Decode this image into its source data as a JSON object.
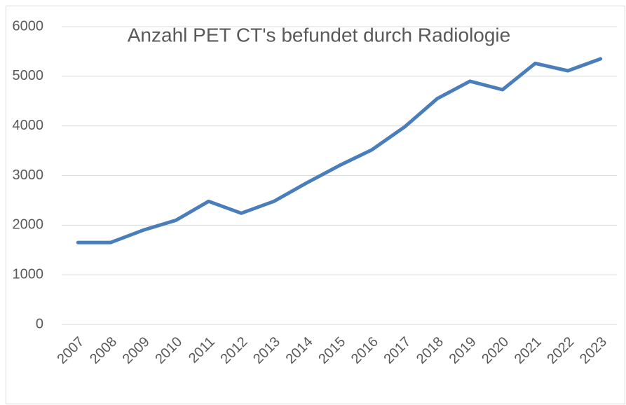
{
  "chart_data": {
    "type": "line",
    "title": "Anzahl PET CT's befundet durch Radiologie",
    "categories": [
      "2007",
      "2008",
      "2009",
      "2010",
      "2011",
      "2012",
      "2013",
      "2014",
      "2015",
      "2016",
      "2017",
      "2018",
      "2019",
      "2020",
      "2021",
      "2022",
      "2023"
    ],
    "values": [
      1650,
      1650,
      1900,
      2100,
      2480,
      2240,
      2480,
      2850,
      3200,
      3520,
      3980,
      4550,
      4900,
      4730,
      5260,
      5110,
      5350
    ],
    "color": "#4a7ebb",
    "ylim": [
      0,
      6000
    ],
    "yticks": [
      0,
      1000,
      2000,
      3000,
      4000,
      5000,
      6000
    ],
    "grid": true
  }
}
